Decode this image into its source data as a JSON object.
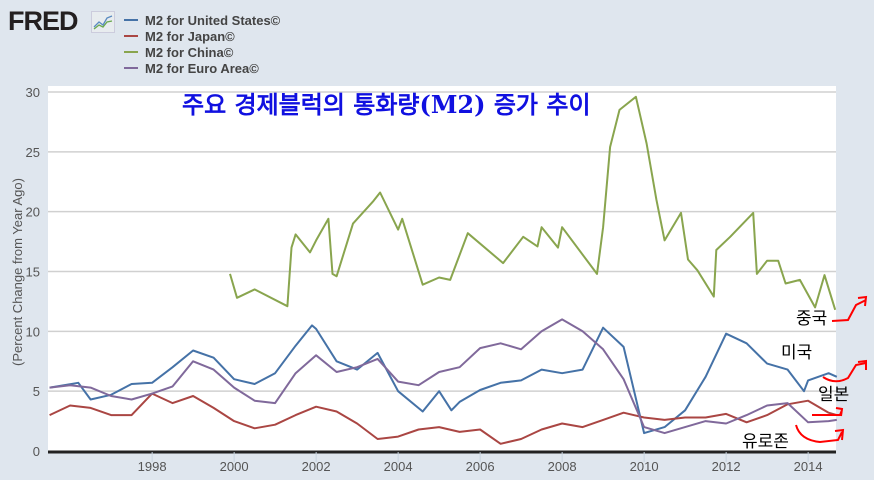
{
  "logo": "FRED",
  "chart_data": {
    "type": "line",
    "title": "주요 경제블럭의 통화량(M2) 증가 추이",
    "ylabel": "(Percent Change from Year Ago)",
    "xlabel": "",
    "ylim": [
      0,
      30
    ],
    "xlim": [
      1995.5,
      2014.7
    ],
    "yticks": [
      "0",
      "5",
      "10",
      "15",
      "20",
      "25",
      "30"
    ],
    "xticks": [
      "1998",
      "2000",
      "2002",
      "2004",
      "2006",
      "2008",
      "2010",
      "2012",
      "2014"
    ],
    "grid": true,
    "legend_position": "top-left",
    "series": [
      {
        "name": "M2 for United States©",
        "color": "#4572a7",
        "x": [
          1995.5,
          1996.2,
          1996.5,
          1997,
          1997.5,
          1998,
          1998.5,
          1999,
          1999.5,
          2000,
          2000.5,
          2001,
          2001.5,
          2001.9,
          2002,
          2002.5,
          2003,
          2003.5,
          2004,
          2004.6,
          2005,
          2005.3,
          2005.5,
          2006,
          2006.5,
          2007,
          2007.5,
          2008,
          2008.5,
          2009,
          2009.5,
          2010,
          2010.5,
          2011,
          2011.5,
          2012,
          2012.5,
          2013,
          2013.5,
          2013.9,
          2014,
          2014.5,
          2014.7
        ],
        "y": [
          5.3,
          5.7,
          4.3,
          4.7,
          5.6,
          5.7,
          7.0,
          8.4,
          7.8,
          6.0,
          5.6,
          6.5,
          8.8,
          10.5,
          10.2,
          7.5,
          6.8,
          8.2,
          5.0,
          3.3,
          5.0,
          3.4,
          4.1,
          5.1,
          5.7,
          5.9,
          6.8,
          6.5,
          6.8,
          10.3,
          8.7,
          1.5,
          2.0,
          3.4,
          6.2,
          9.8,
          9.0,
          7.3,
          6.8,
          5.0,
          5.9,
          6.5,
          6.2
        ]
      },
      {
        "name": "M2 for Japan©",
        "color": "#aa4643",
        "x": [
          1995.5,
          1996,
          1996.5,
          1997,
          1997.5,
          1998,
          1998.5,
          1999,
          1999.5,
          2000,
          2000.5,
          2001,
          2001.5,
          2002,
          2002.5,
          2003,
          2003.5,
          2004,
          2004.5,
          2005,
          2005.5,
          2006,
          2006.5,
          2007,
          2007.5,
          2008,
          2008.5,
          2009,
          2009.5,
          2010,
          2010.5,
          2011,
          2011.5,
          2012,
          2012.5,
          2013,
          2013.5,
          2014,
          2014.5,
          2014.7
        ],
        "y": [
          3.0,
          3.8,
          3.6,
          3.0,
          3.0,
          4.8,
          4.0,
          4.6,
          3.6,
          2.5,
          1.9,
          2.2,
          3.0,
          3.7,
          3.3,
          2.3,
          1.0,
          1.2,
          1.8,
          2.0,
          1.6,
          1.8,
          0.6,
          1.0,
          1.8,
          2.3,
          2.0,
          2.6,
          3.2,
          2.8,
          2.6,
          2.8,
          2.8,
          3.1,
          2.4,
          3.0,
          3.9,
          4.2,
          3.2,
          3.0
        ]
      },
      {
        "name": "M2 for China©",
        "color": "#89a54e",
        "x": [
          1999.9,
          2000.07,
          2000.5,
          2001.3,
          2001.4,
          2001.5,
          2001.85,
          2002.0,
          2002.3,
          2002.4,
          2002.5,
          2002.9,
          2003.4,
          2003.56,
          2004.0,
          2004.1,
          2004.6,
          2005.0,
          2005.27,
          2005.7,
          2006.56,
          2007.05,
          2007.4,
          2007.5,
          2007.9,
          2008.0,
          2008.85,
          2009.0,
          2009.17,
          2009.4,
          2009.8,
          2010.06,
          2010.3,
          2010.5,
          2010.9,
          2011.07,
          2011.3,
          2011.7,
          2011.76,
          2012.1,
          2012.66,
          2012.75,
          2013.0,
          2013.27,
          2013.45,
          2013.8,
          2014.17,
          2014.4,
          2014.66
        ],
        "y": [
          14.8,
          12.8,
          13.5,
          12.1,
          17.0,
          18.1,
          16.6,
          17.6,
          19.4,
          14.8,
          14.6,
          19.0,
          20.9,
          21.6,
          18.5,
          19.4,
          13.9,
          14.5,
          14.3,
          18.2,
          15.7,
          17.9,
          17.1,
          18.7,
          17.0,
          18.7,
          14.8,
          18.7,
          25.4,
          28.5,
          29.6,
          25.7,
          21.0,
          17.6,
          19.9,
          16.0,
          15.1,
          12.9,
          16.8,
          17.9,
          19.9,
          14.8,
          15.9,
          15.9,
          14.0,
          14.3,
          12.0,
          14.7,
          11.8
        ]
      },
      {
        "name": "M2 for Euro Area©",
        "color": "#80699b",
        "x": [
          1995.5,
          1996,
          1996.5,
          1997,
          1997.5,
          1998,
          1998.5,
          1999,
          1999.5,
          2000,
          2000.5,
          2001,
          2001.5,
          2002,
          2002.5,
          2003,
          2003.5,
          2004,
          2004.5,
          2005,
          2005.5,
          2006,
          2006.5,
          2007,
          2007.5,
          2008,
          2008.5,
          2009,
          2009.5,
          2010,
          2010.5,
          2011,
          2011.5,
          2012,
          2012.5,
          2013,
          2013.5,
          2014,
          2014.5,
          2014.7
        ],
        "y": [
          5.3,
          5.5,
          5.3,
          4.6,
          4.3,
          4.8,
          5.4,
          7.5,
          6.8,
          5.3,
          4.2,
          4.0,
          6.5,
          8.0,
          6.6,
          7.0,
          7.7,
          5.8,
          5.5,
          6.6,
          7.0,
          8.6,
          9.0,
          8.5,
          10.0,
          11.0,
          10.0,
          8.5,
          6.0,
          2.0,
          1.5,
          2.0,
          2.5,
          2.3,
          3.0,
          3.8,
          4.0,
          2.4,
          2.5,
          2.6
        ]
      }
    ],
    "annotations": [
      "중국",
      "미국",
      "일본",
      "유로존"
    ]
  }
}
